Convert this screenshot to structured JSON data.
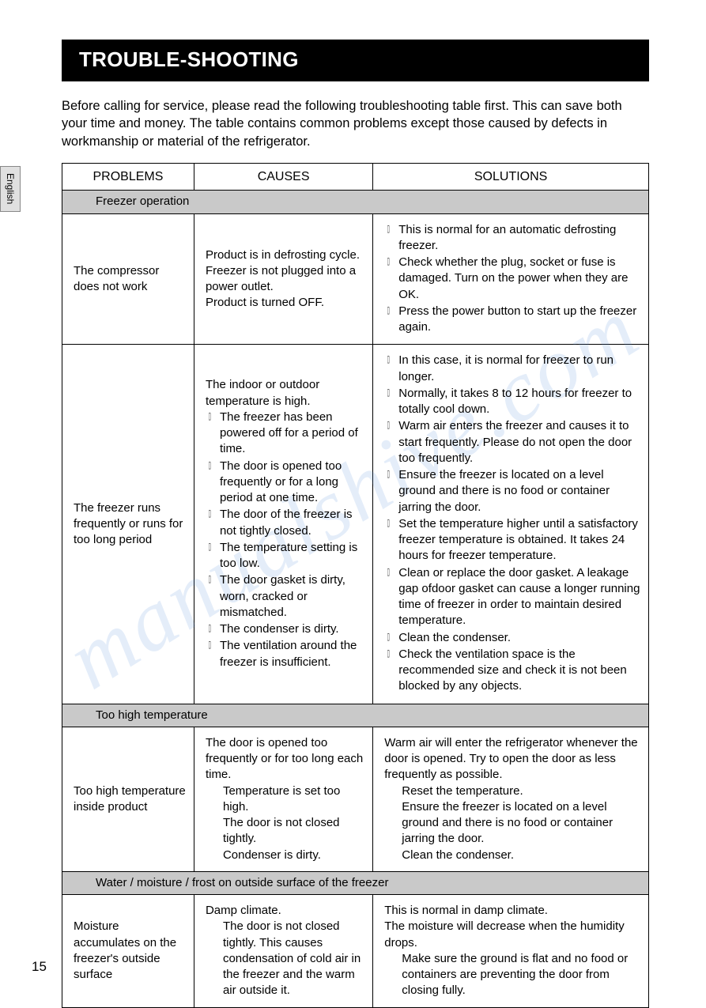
{
  "page": {
    "language_tab": "English",
    "title": "TROUBLE-SHOOTING",
    "intro": "Before calling for service, please read the following troubleshooting table first. This can save both your time and money. The table contains common problems except those caused by defects in workmanship or material of the refrigerator.",
    "page_number": "15",
    "watermark": "manualshive.com"
  },
  "table": {
    "headers": {
      "c1": "PROBLEMS",
      "c2": "CAUSES",
      "c3": "SOLUTIONS"
    },
    "section1": "Freezer operation",
    "row1": {
      "problem": "The compressor does not work",
      "cause_l1": "Product is in defrosting  cycle.",
      "cause_l2": "Freezer is not plugged into a power outlet.",
      "cause_l3": "Product is turned OFF.",
      "sol_b1": "This is normal for an automatic defrosting freezer.",
      "sol_b2": "Check whether the plug, socket or fuse is damaged. Turn on the power when they are OK.",
      "sol_b3": "Press the power button to start up the freezer again."
    },
    "row2": {
      "problem": "The freezer runs frequently or runs for too long period",
      "cause_pre": "The indoor or outdoor temperature is high.",
      "cause_b1": "The freezer has been powered off for a period of time.",
      "cause_b2": "The door is opened too frequently or for a long period at one time.",
      "cause_b3": "The door of the freezer is not tightly closed.",
      "cause_b4": "The temperature setting is too low.",
      "cause_b5": "The door gasket is dirty, worn, cracked or mismatched.",
      "cause_b6": "The condenser is dirty.",
      "cause_b7": "The ventilation around the freezer is insufficient.",
      "sol_b1": "In this case, it is normal for freezer to run longer.",
      "sol_b2": "Normally, it takes 8 to 12 hours for freezer to totally cool down.",
      "sol_b3": "Warm air enters the freezer and causes it to start frequently. Please do not open the door too frequently.",
      "sol_b4": "Ensure the freezer is located on a level ground and there is no food or container jarring the door.",
      "sol_b5": "Set the temperature higher until a satisfactory freezer temperature is obtained. It takes 24 hours for freezer temperature.",
      "sol_b6": "Clean or replace the door gasket. A leakage gap ofdoor gasket can cause a longer running time of freezer in order to maintain desired temperature.",
      "sol_b7": "Clean the condenser.",
      "sol_b8": "Check the ventilation space  is the recommended size and check it is not been blocked by any objects."
    },
    "section2": "Too high temperature",
    "row3": {
      "problem": "Too high temperature inside product",
      "cause_l1": "The door is opened too frequently or for too long each time.",
      "cause_i1": "Temperature is set too high.",
      "cause_i2": "The door is not closed tightly.",
      "cause_i3": "Condenser is dirty.",
      "sol_l1": "Warm air will enter the refrigerator whenever the door is opened. Try to open the door as less frequently as possible.",
      "sol_i1": "Reset the temperature.",
      "sol_i2": "Ensure the freezer is located on a level ground and there is no food or container jarring the door.",
      "sol_i3": "Clean the condenser."
    },
    "section3": "Water / moisture / frost on outside surface of the freezer",
    "row4": {
      "problem": "Moisture accumulates on the freezer's outside surface",
      "cause_l1": "Damp climate.",
      "cause_i1": "The door is not closed tightly. This causes condensation of cold air in the freezer and the warm air outside it.",
      "sol_l1": "This is normal in damp climate.",
      "sol_l2": "The moisture will decrease when the humidity drops.",
      "sol_i1": "Make sure the ground is flat and no food or containers are preventing the door from closing fully."
    }
  },
  "style": {
    "title_bg": "#000000",
    "title_color": "#ffffff",
    "section_bg": "#c9c9c9",
    "border_color": "#000000",
    "watermark_color": "rgba(90,140,220,0.16)"
  }
}
